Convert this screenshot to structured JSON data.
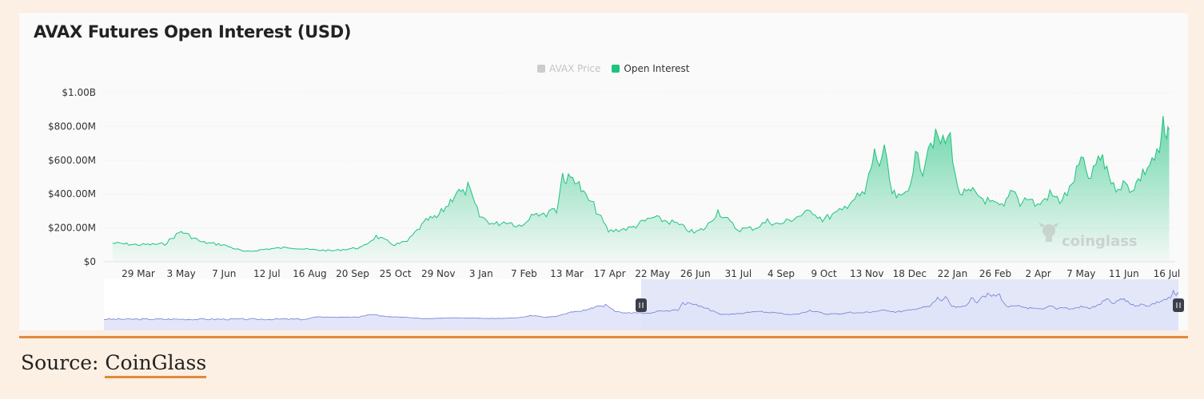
{
  "colors": {
    "open_interest": "#1fc37f",
    "avax_price": "#cccccc",
    "navigator_line": "#6e7fd8",
    "navigator_fill": "#dfe3f7",
    "accent": "#e08a3c"
  },
  "legend": {
    "avax_price": "AVAX Price",
    "open_interest": "Open Interest"
  },
  "footer": {
    "source_prefix": "Source: ",
    "source_link": "CoinGlass"
  },
  "watermark": "coinglass",
  "chart_data": {
    "type": "area",
    "title": "AVAX Futures Open Interest (USD)",
    "xlabel": "",
    "ylabel": "",
    "ylim": [
      0,
      1000000000
    ],
    "y_ticks": [
      0,
      200000000,
      400000000,
      600000000,
      800000000,
      1000000000
    ],
    "y_tick_labels": [
      "$0",
      "$200.00M",
      "$400.00M",
      "$600.00M",
      "$800.00M",
      "$1.00B"
    ],
    "x_tick_labels": [
      "29 Mar",
      "3 May",
      "7 Jun",
      "12 Jul",
      "16 Aug",
      "20 Sep",
      "25 Oct",
      "29 Nov",
      "3 Jan",
      "7 Feb",
      "13 Mar",
      "17 Apr",
      "22 May",
      "26 Jun",
      "31 Jul",
      "4 Sep",
      "9 Oct",
      "13 Nov",
      "18 Dec",
      "22 Jan",
      "26 Feb",
      "2 Apr",
      "7 May",
      "11 Jun",
      "16 Jul"
    ],
    "grid": true,
    "legend_position": "top-center",
    "series": [
      {
        "name": "Open Interest",
        "x": [
          "8 Mar",
          "29 Mar",
          "20 Apr",
          "3 May",
          "20 May",
          "7 Jun",
          "25 Jun",
          "12 Jul",
          "1 Aug",
          "16 Aug",
          "5 Sep",
          "20 Sep",
          "29 Sep",
          "10 Oct",
          "25 Oct",
          "5 Nov",
          "15 Nov",
          "22 Nov",
          "29 Nov",
          "8 Dec",
          "15 Dec",
          "20 Dec",
          "24 Dec",
          "3 Jan",
          "15 Jan",
          "25 Jan",
          "7 Feb",
          "17 Feb",
          "25 Feb",
          "1 Mar",
          "5 Mar",
          "10 Mar",
          "13 Mar",
          "20 Mar",
          "27 Mar",
          "5 Apr",
          "17 Apr",
          "5 May",
          "22 May",
          "10 Jun",
          "26 Jun",
          "5 Jul",
          "15 Jul",
          "31 Jul",
          "15 Aug",
          "25 Aug",
          "4 Sep",
          "20 Sep",
          "1 Oct",
          "9 Oct",
          "25 Oct",
          "1 Nov",
          "7 Nov",
          "13 Nov",
          "18 Nov",
          "21 Nov",
          "25 Nov",
          "29 Nov",
          "5 Dec",
          "12 Dec",
          "18 Dec",
          "24 Dec",
          "30 Dec",
          "4 Jan",
          "10 Jan",
          "16 Jan",
          "22 Jan",
          "28 Jan",
          "3 Feb",
          "10 Feb",
          "26 Feb",
          "5 Mar",
          "12 Mar",
          "18 Mar",
          "24 Mar",
          "2 Apr",
          "12 Apr",
          "20 Apr",
          "28 Apr",
          "7 May",
          "15 May",
          "21 May",
          "28 May",
          "3 Jun",
          "11 Jun",
          "18 Jun",
          "25 Jun",
          "4 Jul",
          "10 Jul",
          "13 Jul",
          "16 Jul",
          "18 Jul"
        ],
        "values": [
          110000000,
          100000000,
          105000000,
          180000000,
          115000000,
          100000000,
          58000000,
          75000000,
          85000000,
          72000000,
          65000000,
          78000000,
          85000000,
          150000000,
          100000000,
          120000000,
          200000000,
          250000000,
          260000000,
          340000000,
          420000000,
          400000000,
          440000000,
          270000000,
          220000000,
          240000000,
          210000000,
          300000000,
          270000000,
          320000000,
          300000000,
          520000000,
          480000000,
          500000000,
          400000000,
          330000000,
          180000000,
          200000000,
          260000000,
          230000000,
          170000000,
          200000000,
          300000000,
          190000000,
          200000000,
          240000000,
          220000000,
          270000000,
          300000000,
          250000000,
          300000000,
          360000000,
          380000000,
          400000000,
          550000000,
          640000000,
          580000000,
          650000000,
          400000000,
          370000000,
          430000000,
          620000000,
          550000000,
          700000000,
          730000000,
          700000000,
          740000000,
          420000000,
          400000000,
          410000000,
          340000000,
          320000000,
          440000000,
          350000000,
          380000000,
          330000000,
          400000000,
          360000000,
          420000000,
          600000000,
          480000000,
          620000000,
          560000000,
          440000000,
          460000000,
          430000000,
          500000000,
          600000000,
          640000000,
          810000000,
          700000000,
          780000000
        ]
      }
    ]
  }
}
